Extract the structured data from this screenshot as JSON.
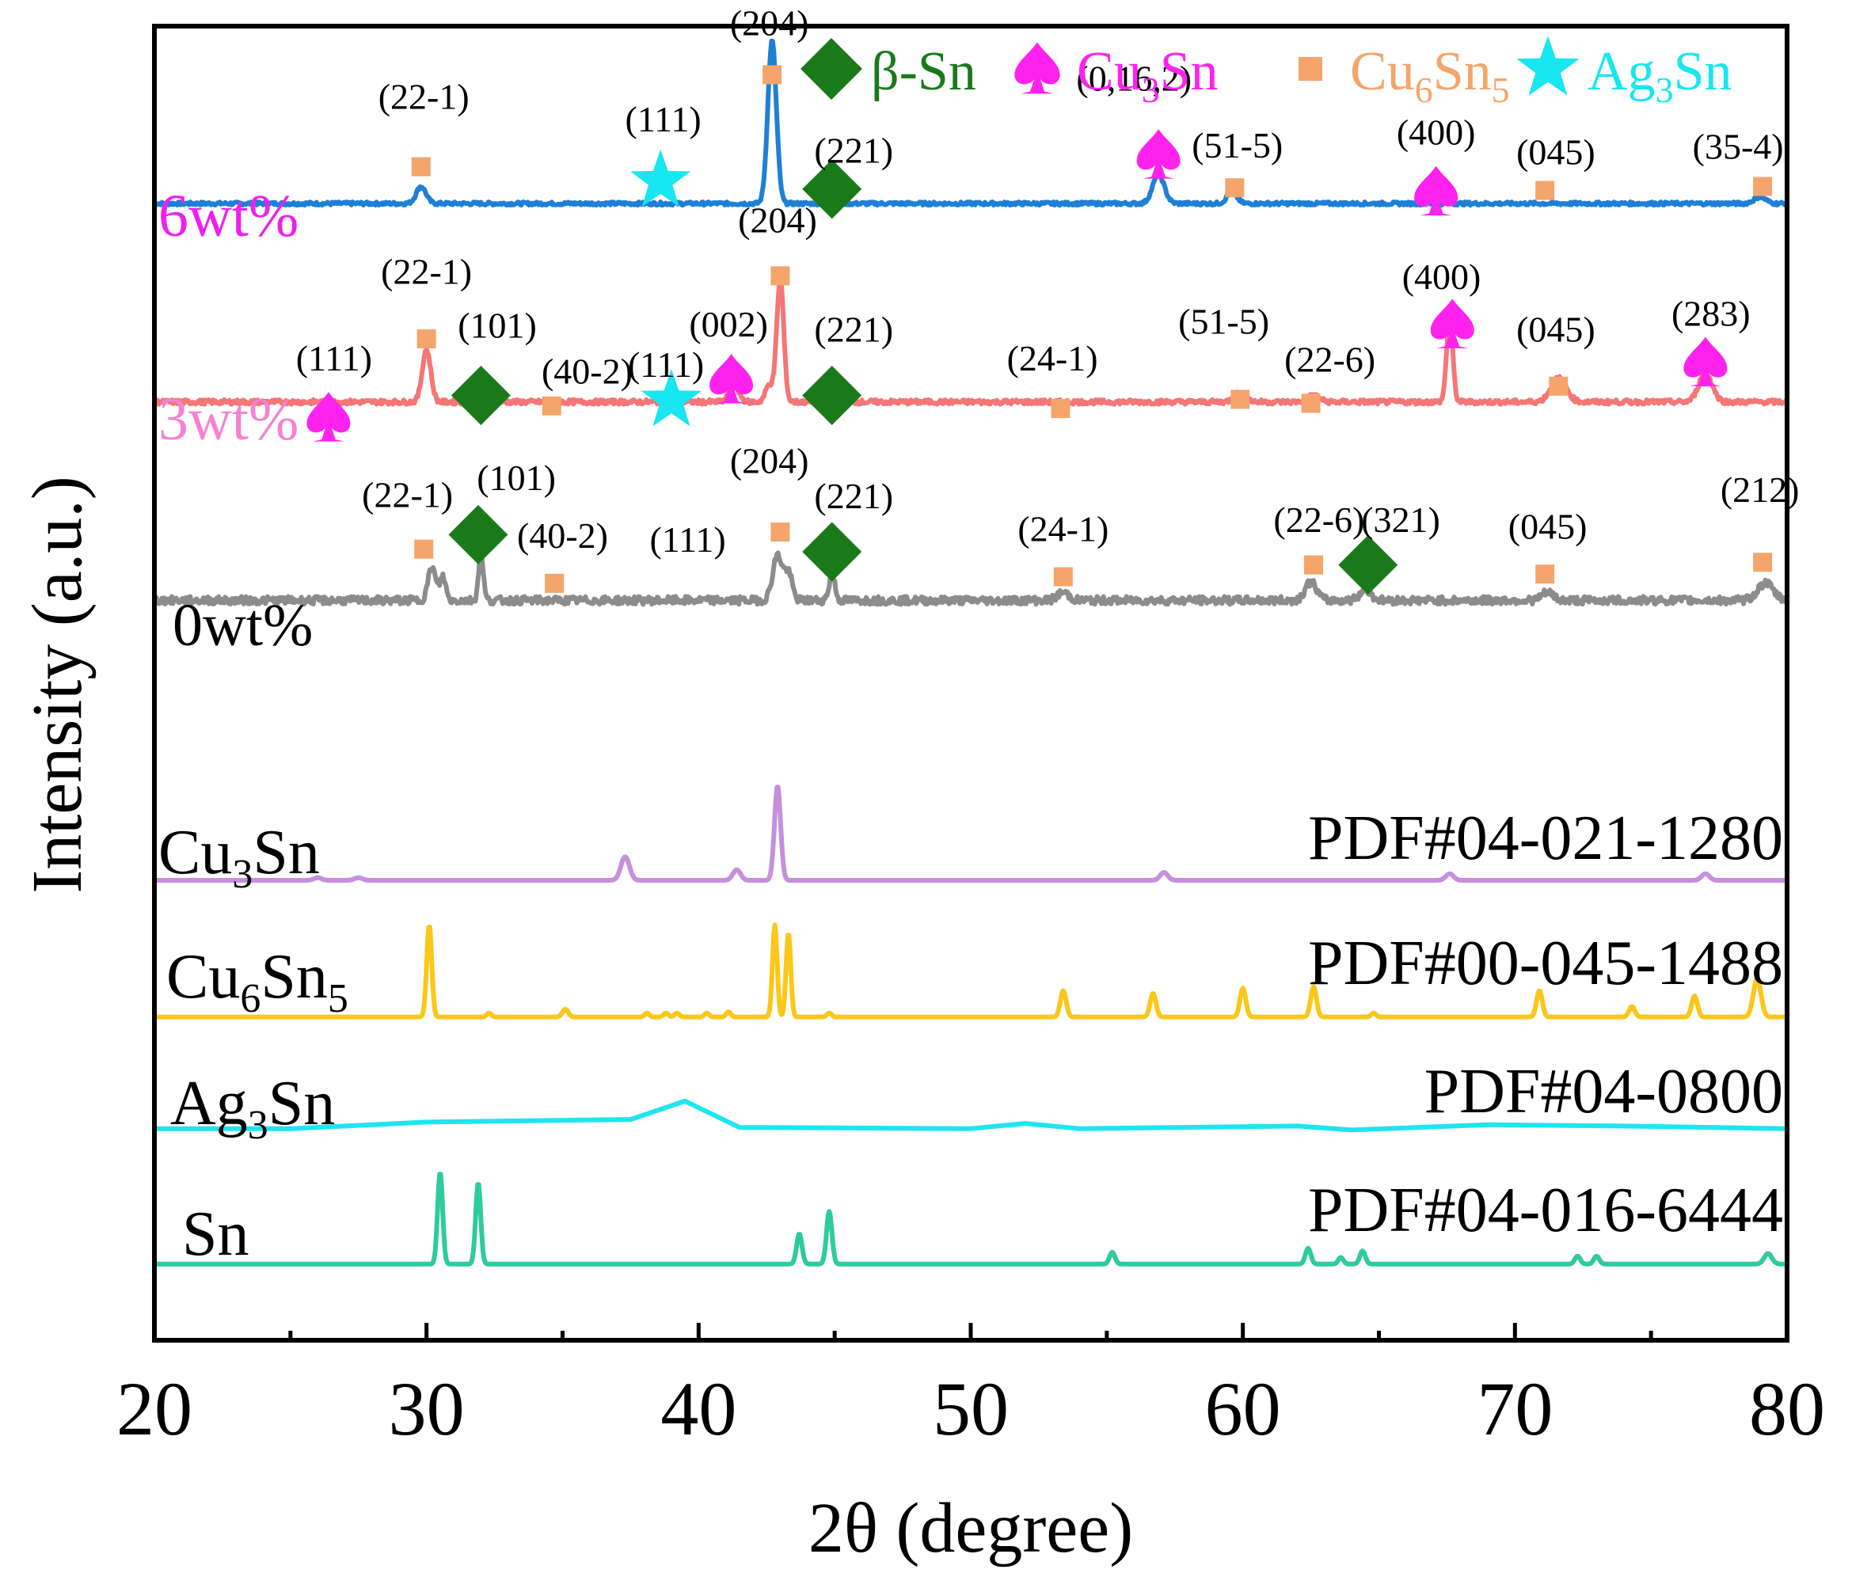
{
  "chart_data": {
    "type": "line",
    "title": "",
    "xlabel": "2θ (degree)",
    "ylabel": "Intensity (a.u.)",
    "xlim": [
      20,
      80
    ],
    "ylim": [
      0,
      100
    ],
    "xticks": [
      20,
      30,
      40,
      50,
      60,
      70,
      80
    ],
    "grid": false,
    "legend": {
      "placement": "top-right",
      "entries": [
        {
          "name": "β-Sn",
          "symbol": "diamond",
          "color": "#1a7a1a"
        },
        {
          "name": "Cu",
          "sub1": "3",
          "name2": "Sn",
          "sub2": "",
          "symbol": "spade",
          "color": "#ff22ee"
        },
        {
          "name": "Cu",
          "sub1": "6",
          "name2": "Sn",
          "sub2": "5",
          "symbol": "square",
          "color": "#f5a56b"
        },
        {
          "name": "Ag",
          "sub1": "3",
          "name2": "Sn",
          "sub2": "",
          "symbol": "star",
          "color": "#18e6f0"
        }
      ]
    },
    "series": [
      {
        "name": "6wt%",
        "color": "#1f7fd6",
        "label_color": "#ee20ee",
        "baseline": 86.5,
        "noise": 0.25,
        "peaks": [
          [
            29.8,
            1.3,
            0.25
          ],
          [
            42.7,
            12.4,
            0.22
          ],
          [
            56.9,
            2.2,
            0.3
          ],
          [
            59.6,
            0.9,
            0.25
          ],
          [
            79.0,
            0.5,
            0.3
          ]
        ]
      },
      {
        "name": "3wt%",
        "color": "#f47676",
        "label_color": "#f582d2",
        "baseline": 71.4,
        "noise": 0.35,
        "peaks": [
          [
            30.0,
            4.0,
            0.22
          ],
          [
            31.9,
            0.6,
            0.25
          ],
          [
            41.3,
            1.3,
            0.25
          ],
          [
            42.6,
            1.3,
            0.2
          ],
          [
            43.0,
            9.4,
            0.18
          ],
          [
            59.9,
            0.7,
            0.3
          ],
          [
            62.6,
            0.5,
            0.3
          ],
          [
            67.6,
            6.3,
            0.16
          ],
          [
            71.6,
            1.8,
            0.4
          ],
          [
            77.0,
            2.2,
            0.35
          ]
        ]
      },
      {
        "name": "0wt%",
        "color": "#8c8c8c",
        "label_color": "#000000",
        "baseline": 56.3,
        "noise": 0.6,
        "peaks": [
          [
            30.2,
            2.5,
            0.2
          ],
          [
            30.6,
            1.8,
            0.15
          ],
          [
            32.0,
            3.8,
            0.12
          ],
          [
            42.9,
            3.4,
            0.25
          ],
          [
            43.3,
            2.0,
            0.2
          ],
          [
            44.9,
            2.0,
            0.15
          ],
          [
            53.4,
            0.6,
            0.3
          ],
          [
            62.5,
            1.4,
            0.3
          ],
          [
            64.5,
            0.8,
            0.3
          ],
          [
            71.2,
            0.6,
            0.3
          ],
          [
            79.2,
            1.3,
            0.4
          ]
        ]
      },
      {
        "name": "Cu3Sn",
        "display": {
          "main": "Cu",
          "sub": "3",
          "tail": "Sn",
          "sub2": ""
        },
        "pdf": "PDF#04-021-1280",
        "color": "#c690dd",
        "baseline": 35.0,
        "noise": 0,
        "peaks": [
          [
            26.0,
            0.2,
            0.2
          ],
          [
            27.5,
            0.2,
            0.2
          ],
          [
            37.3,
            1.8,
            0.22
          ],
          [
            41.4,
            0.8,
            0.2
          ],
          [
            42.9,
            7.2,
            0.16
          ],
          [
            57.1,
            0.6,
            0.2
          ],
          [
            67.6,
            0.5,
            0.2
          ],
          [
            77.0,
            0.5,
            0.2
          ]
        ]
      },
      {
        "name": "Cu6Sn5",
        "display": {
          "main": "Cu",
          "sub": "6",
          "tail": "Sn",
          "sub2": "5"
        },
        "pdf": "PDF#00-045-1488",
        "color": "#fcc719",
        "baseline": 24.6,
        "noise": 0,
        "peaks": [
          [
            30.1,
            7.0,
            0.13
          ],
          [
            32.3,
            0.3,
            0.12
          ],
          [
            35.1,
            0.6,
            0.15
          ],
          [
            38.1,
            0.3,
            0.12
          ],
          [
            38.8,
            0.3,
            0.12
          ],
          [
            39.2,
            0.3,
            0.12
          ],
          [
            40.3,
            0.3,
            0.12
          ],
          [
            41.1,
            0.4,
            0.12
          ],
          [
            42.8,
            7.0,
            0.12
          ],
          [
            43.3,
            6.4,
            0.12
          ],
          [
            44.8,
            0.3,
            0.12
          ],
          [
            53.4,
            2.0,
            0.15
          ],
          [
            56.7,
            1.8,
            0.15
          ],
          [
            60.0,
            2.2,
            0.15
          ],
          [
            62.6,
            2.3,
            0.15
          ],
          [
            64.8,
            0.3,
            0.12
          ],
          [
            70.9,
            2.0,
            0.15
          ],
          [
            74.3,
            0.8,
            0.15
          ],
          [
            76.6,
            1.6,
            0.15
          ],
          [
            78.9,
            2.9,
            0.2
          ]
        ]
      },
      {
        "name": "Ag3Sn",
        "display": {
          "main": "Ag",
          "sub": "3",
          "tail": "Sn",
          "sub2": ""
        },
        "pdf": "PDF#04-0800",
        "color": "#1ee5f0",
        "style": "polyline",
        "baseline": 16.1,
        "noise": 0,
        "points": [
          [
            20,
            16.1
          ],
          [
            25,
            16.1
          ],
          [
            30,
            16.6
          ],
          [
            37.5,
            16.8
          ],
          [
            39.5,
            18.2
          ],
          [
            41.5,
            16.2
          ],
          [
            50,
            16.1
          ],
          [
            52.0,
            16.5
          ],
          [
            54,
            16.1
          ],
          [
            62,
            16.3
          ],
          [
            64,
            16.0
          ],
          [
            69.0,
            16.4
          ],
          [
            74,
            16.3
          ],
          [
            80,
            16.1
          ]
        ]
      },
      {
        "name": "Sn",
        "display": {
          "main": "Sn",
          "sub": "",
          "tail": "",
          "sub2": ""
        },
        "pdf": "PDF#04-016-6444",
        "color": "#2ecb9d",
        "baseline": 5.8,
        "noise": 0,
        "peaks": [
          [
            30.5,
            7.0,
            0.13
          ],
          [
            31.9,
            6.2,
            0.13
          ],
          [
            43.7,
            2.3,
            0.14
          ],
          [
            44.8,
            4.0,
            0.14
          ],
          [
            55.2,
            0.9,
            0.14
          ],
          [
            62.4,
            1.2,
            0.14
          ],
          [
            63.6,
            0.5,
            0.13
          ],
          [
            64.4,
            1.0,
            0.14
          ],
          [
            72.3,
            0.6,
            0.14
          ],
          [
            73.0,
            0.6,
            0.14
          ],
          [
            79.3,
            0.8,
            0.2
          ]
        ]
      }
    ],
    "annotations": [
      {
        "x": 29.9,
        "y": 93.7,
        "text": "(22-1)"
      },
      {
        "x": 38.7,
        "y": 92.0,
        "text": "(111)"
      },
      {
        "x": 42.6,
        "y": 99.3,
        "text": "(204)"
      },
      {
        "x": 45.7,
        "y": 89.6,
        "text": "(221)"
      },
      {
        "x": 56.0,
        "y": 95.1,
        "text": "(0,16,2)"
      },
      {
        "x": 59.8,
        "y": 90.0,
        "text": "(51-5)"
      },
      {
        "x": 67.1,
        "y": 91.0,
        "text": "(400)"
      },
      {
        "x": 71.5,
        "y": 89.5,
        "text": "(045)"
      },
      {
        "x": 78.2,
        "y": 89.9,
        "text": "(35-4)"
      },
      {
        "x": 30.0,
        "y": 80.4,
        "text": "(22-1)"
      },
      {
        "x": 26.6,
        "y": 73.8,
        "text": "(111)"
      },
      {
        "x": 32.6,
        "y": 76.3,
        "text": "(101)"
      },
      {
        "x": 35.9,
        "y": 72.8,
        "text": "(40-2)"
      },
      {
        "x": 38.8,
        "y": 73.3,
        "text": "(111)"
      },
      {
        "x": 41.1,
        "y": 76.4,
        "text": "(002)"
      },
      {
        "x": 42.9,
        "y": 84.3,
        "text": "(204)"
      },
      {
        "x": 45.7,
        "y": 76.0,
        "text": "(221)"
      },
      {
        "x": 53.0,
        "y": 73.8,
        "text": "(24-1)"
      },
      {
        "x": 59.3,
        "y": 76.6,
        "text": "(51-5)"
      },
      {
        "x": 63.2,
        "y": 73.7,
        "text": "(22-6)"
      },
      {
        "x": 67.3,
        "y": 80.0,
        "text": "(400)"
      },
      {
        "x": 71.5,
        "y": 76.0,
        "text": "(045)"
      },
      {
        "x": 77.2,
        "y": 77.2,
        "text": "(283)"
      },
      {
        "x": 29.3,
        "y": 63.4,
        "text": "(22-1)"
      },
      {
        "x": 33.3,
        "y": 64.7,
        "text": "(101)"
      },
      {
        "x": 35.0,
        "y": 60.3,
        "text": "(40-2)"
      },
      {
        "x": 39.6,
        "y": 60.0,
        "text": "(111)"
      },
      {
        "x": 42.6,
        "y": 66.0,
        "text": "(204)"
      },
      {
        "x": 45.7,
        "y": 63.3,
        "text": "(221)"
      },
      {
        "x": 53.4,
        "y": 60.8,
        "text": "(24-1)"
      },
      {
        "x": 62.8,
        "y": 61.5,
        "text": "(22-6)"
      },
      {
        "x": 65.8,
        "y": 61.5,
        "text": "(321)"
      },
      {
        "x": 71.2,
        "y": 61.0,
        "text": "(045)"
      },
      {
        "x": 79.0,
        "y": 63.8,
        "text": "(212)"
      }
    ],
    "markers": [
      {
        "x": 29.8,
        "y": 89.3,
        "symbol": "square"
      },
      {
        "x": 38.6,
        "y": 88.2,
        "symbol": "star"
      },
      {
        "x": 42.7,
        "y": 96.3,
        "symbol": "square"
      },
      {
        "x": 44.9,
        "y": 87.6,
        "symbol": "diamond"
      },
      {
        "x": 56.9,
        "y": 90.2,
        "symbol": "spade"
      },
      {
        "x": 59.7,
        "y": 87.7,
        "symbol": "square"
      },
      {
        "x": 67.1,
        "y": 87.4,
        "symbol": "spade"
      },
      {
        "x": 71.1,
        "y": 87.5,
        "symbol": "square"
      },
      {
        "x": 79.1,
        "y": 87.8,
        "symbol": "square"
      },
      {
        "x": 30.0,
        "y": 76.2,
        "symbol": "square"
      },
      {
        "x": 26.4,
        "y": 70.2,
        "symbol": "spade"
      },
      {
        "x": 32.0,
        "y": 71.9,
        "symbol": "diamond"
      },
      {
        "x": 34.6,
        "y": 71.1,
        "symbol": "square"
      },
      {
        "x": 39.0,
        "y": 71.5,
        "symbol": "star"
      },
      {
        "x": 41.2,
        "y": 73.1,
        "symbol": "spade"
      },
      {
        "x": 43.0,
        "y": 81.0,
        "symbol": "square"
      },
      {
        "x": 44.9,
        "y": 71.9,
        "symbol": "diamond"
      },
      {
        "x": 53.3,
        "y": 70.9,
        "symbol": "square"
      },
      {
        "x": 59.9,
        "y": 71.6,
        "symbol": "square"
      },
      {
        "x": 62.5,
        "y": 71.3,
        "symbol": "square"
      },
      {
        "x": 67.7,
        "y": 77.3,
        "symbol": "spade"
      },
      {
        "x": 71.6,
        "y": 72.6,
        "symbol": "square"
      },
      {
        "x": 77.0,
        "y": 74.4,
        "symbol": "spade"
      },
      {
        "x": 29.9,
        "y": 60.2,
        "symbol": "square"
      },
      {
        "x": 31.9,
        "y": 61.3,
        "symbol": "diamond"
      },
      {
        "x": 34.7,
        "y": 57.6,
        "symbol": "square"
      },
      {
        "x": 43.0,
        "y": 61.5,
        "symbol": "square"
      },
      {
        "x": 44.9,
        "y": 60.0,
        "symbol": "diamond"
      },
      {
        "x": 53.4,
        "y": 58.1,
        "symbol": "square"
      },
      {
        "x": 62.6,
        "y": 59.0,
        "symbol": "square"
      },
      {
        "x": 64.6,
        "y": 59.0,
        "symbol": "diamond"
      },
      {
        "x": 71.1,
        "y": 58.3,
        "symbol": "square"
      },
      {
        "x": 79.1,
        "y": 59.2,
        "symbol": "square"
      }
    ]
  },
  "colors": {
    "beta_sn": "#1a7a1a",
    "cu3sn": "#ff22ee",
    "cu6sn5": "#f5a56b",
    "ag3sn": "#18e6f0"
  }
}
